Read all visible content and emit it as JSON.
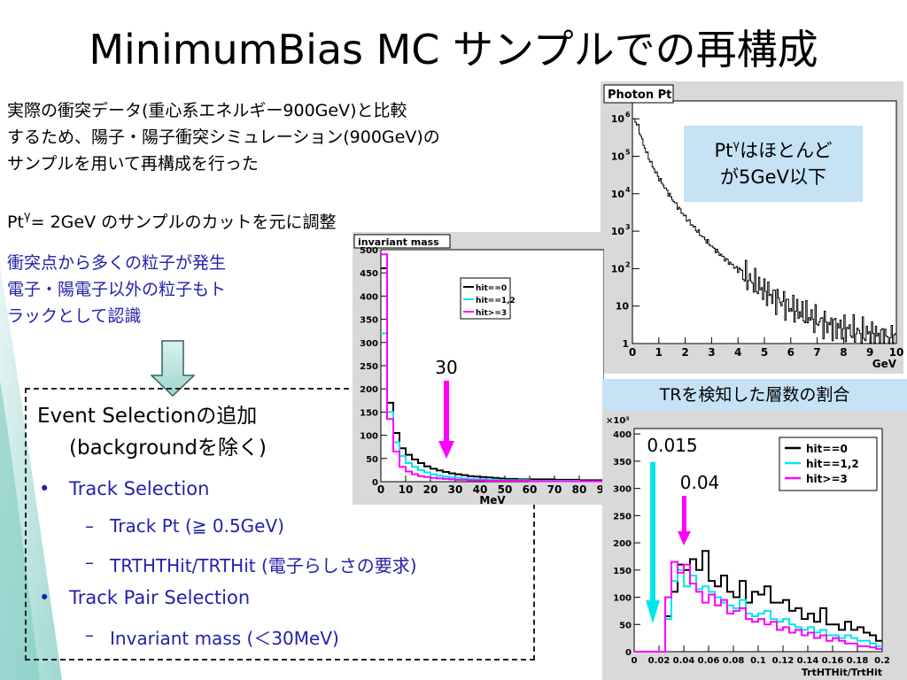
{
  "title": "MinimumBias MC サンプルでの再構成",
  "intro": {
    "line1": "実際の衝突データ(重心系エネルギー900GeV)と比較",
    "line2": "するため、陽子・陽子衝突シミュレーション(900GeV)の",
    "line3": "サンプルを用いて再構成を行った"
  },
  "pt_cut": {
    "prefix": "Pt",
    "sup": "γ",
    "rest": "= 2GeV のサンプルのカットを元に調整"
  },
  "blue_text": {
    "line1": "衝突点から多くの粒子が発生",
    "line2": "電子・陽電子以外の粒子もト",
    "line3": "ラックとして認識"
  },
  "selection": {
    "heading1": "Event Selectionの追加",
    "heading2": "(backgroundを除く)",
    "items": [
      {
        "bullet": "•",
        "text": "Track Selection"
      },
      {
        "bullet": "–",
        "text": "Track Pt (≧ 0.5GeV)"
      },
      {
        "bullet": "–",
        "text": "TRTHTHit/TRTHit  (電子らしさの要求)"
      },
      {
        "bullet": "•",
        "text": "Track Pair Selection"
      },
      {
        "bullet": "–",
        "text": "Invariant mass (＜30MeV)"
      }
    ]
  },
  "notes": {
    "photon_note_prefix": "Pt",
    "photon_note_sup": "γ",
    "photon_note_line1": "はほとんど",
    "photon_note_line2": "が5GeV以下",
    "trt_header": "TRを検知した層数の割合"
  },
  "colors": {
    "cyan": "#00e5ee",
    "magenta": "#ff00ff",
    "blue_text": "#2222aa",
    "note_bg": "#c6e2f5"
  },
  "chart_data": [
    {
      "type": "line",
      "title": "Photon Pt",
      "xlabel": "GeV",
      "ylabel": "",
      "log_y": true,
      "xlim": [
        0,
        10
      ],
      "ylim": [
        1,
        3000000
      ],
      "x_ticks": [
        "0",
        "1",
        "2",
        "3",
        "4",
        "5",
        "6",
        "7",
        "8",
        "9",
        "10"
      ],
      "y_ticks": [
        {
          "base": "1",
          "exp": ""
        },
        {
          "base": "10",
          "exp": ""
        },
        {
          "base": "10",
          "exp": "2"
        },
        {
          "base": "10",
          "exp": "3"
        },
        {
          "base": "10",
          "exp": "4"
        },
        {
          "base": "10",
          "exp": "5"
        },
        {
          "base": "10",
          "exp": "6"
        }
      ],
      "series": [
        {
          "x": [
            0.05,
            0.2,
            0.4,
            0.6,
            0.8,
            1.0,
            1.25,
            1.5,
            1.75,
            2.0,
            2.5,
            3.0,
            3.5,
            4.0,
            4.5,
            5.0,
            5.5,
            6.0,
            6.5,
            7.0,
            7.5,
            8.0,
            8.5,
            9.0,
            9.5,
            10.0
          ],
          "y": [
            1000000,
            600000,
            200000,
            90000,
            45000,
            25000,
            13000,
            7000,
            4000,
            2300,
            900,
            380,
            180,
            90,
            45,
            25,
            15,
            9,
            6,
            4,
            3,
            2.5,
            2,
            1.8,
            1.5,
            1.3
          ]
        }
      ]
    },
    {
      "type": "line",
      "title": "invariant mass",
      "xlabel": "MeV",
      "ylabel": "",
      "xlim": [
        0,
        90
      ],
      "ylim": [
        0,
        500
      ],
      "x_ticks": [
        "0",
        "10",
        "20",
        "30",
        "40",
        "50",
        "60",
        "70",
        "80",
        "90"
      ],
      "y_ticks": [
        "0",
        "50",
        "100",
        "150",
        "200",
        "250",
        "300",
        "350",
        "400",
        "450",
        "500"
      ],
      "annotations": [
        {
          "text": "30",
          "x": 30
        }
      ],
      "series": [
        {
          "name": "hit==0",
          "color": "#000000",
          "x": [
            0,
            2.5,
            5,
            7.5,
            10,
            12.5,
            15,
            17.5,
            20,
            22.5,
            25,
            27.5,
            30,
            32.5,
            35,
            37.5,
            40,
            42.5,
            45,
            47.5,
            50,
            55,
            60,
            70,
            80,
            90
          ],
          "y": [
            460,
            170,
            105,
            72,
            58,
            48,
            40,
            33,
            28,
            24,
            21,
            18,
            16,
            14,
            12,
            11,
            10,
            9,
            8,
            7,
            6,
            5,
            5,
            4,
            3,
            3
          ]
        },
        {
          "name": "hit==1,2",
          "color": "#00e5ee",
          "x": [
            0,
            2.5,
            5,
            7.5,
            10,
            12.5,
            15,
            17.5,
            20,
            22.5,
            25,
            27.5,
            30,
            32.5,
            35,
            37.5,
            40,
            42.5,
            45,
            47.5,
            50,
            55,
            60,
            70,
            80,
            90
          ],
          "y": [
            320,
            150,
            85,
            55,
            40,
            32,
            25,
            20,
            16,
            13,
            11,
            9,
            8,
            7,
            6,
            5,
            5,
            4,
            4,
            3,
            3,
            3,
            2,
            2,
            1,
            1
          ]
        },
        {
          "name": "hit>=3",
          "color": "#ff00ff",
          "x": [
            0,
            2.5,
            5,
            7.5,
            10,
            12.5,
            15,
            17.5,
            20,
            22.5,
            25,
            27.5,
            30,
            32.5,
            35,
            37.5,
            40,
            42.5,
            45,
            47.5,
            50,
            55,
            60,
            70,
            80,
            90
          ],
          "y": [
            490,
            135,
            65,
            32,
            22,
            16,
            12,
            10,
            8,
            7,
            6,
            5,
            4,
            4,
            3,
            3,
            3,
            2,
            2,
            2,
            2,
            2,
            1,
            1,
            1,
            1
          ]
        }
      ]
    },
    {
      "type": "line",
      "title": "",
      "xlabel": "TrtHTHit/TrtHit",
      "ylabel": "",
      "y_multiplier": "×10³",
      "xlim": [
        0,
        0.2
      ],
      "ylim": [
        0,
        410
      ],
      "x_ticks": [
        "0",
        "0.02",
        "0.04",
        "0.06",
        "0.08",
        "0.1",
        "0.12",
        "0.14",
        "0.16",
        "0.18",
        "0.2"
      ],
      "y_ticks": [
        "0",
        "50",
        "100",
        "150",
        "200",
        "250",
        "300",
        "350",
        "400"
      ],
      "annotations": [
        {
          "text": "0.015",
          "x": 0.015
        },
        {
          "text": "0.04",
          "x": 0.04
        }
      ],
      "series": [
        {
          "name": "hit==0",
          "color": "#000000",
          "x": [
            0,
            0.005,
            0.01,
            0.015,
            0.02,
            0.025,
            0.03,
            0.035,
            0.04,
            0.045,
            0.05,
            0.055,
            0.06,
            0.065,
            0.07,
            0.075,
            0.08,
            0.085,
            0.09,
            0.095,
            0.1,
            0.105,
            0.11,
            0.115,
            0.12,
            0.125,
            0.13,
            0.135,
            0.14,
            0.145,
            0.15,
            0.155,
            0.16,
            0.165,
            0.17,
            0.175,
            0.18,
            0.185,
            0.19,
            0.195
          ],
          "y": [
            0,
            0,
            0,
            0,
            0,
            65,
            110,
            160,
            150,
            170,
            150,
            185,
            130,
            120,
            140,
            110,
            100,
            130,
            90,
            110,
            105,
            120,
            90,
            90,
            95,
            75,
            80,
            60,
            70,
            55,
            80,
            50,
            50,
            40,
            55,
            40,
            45,
            35,
            30,
            20
          ]
        },
        {
          "name": "hit==1,2",
          "color": "#00e5ee",
          "x": [
            0,
            0.005,
            0.01,
            0.015,
            0.02,
            0.025,
            0.03,
            0.035,
            0.04,
            0.045,
            0.05,
            0.055,
            0.06,
            0.065,
            0.07,
            0.075,
            0.08,
            0.085,
            0.09,
            0.095,
            0.1,
            0.105,
            0.11,
            0.115,
            0.12,
            0.125,
            0.13,
            0.135,
            0.14,
            0.145,
            0.15,
            0.155,
            0.16,
            0.165,
            0.17,
            0.175,
            0.18,
            0.185,
            0.19,
            0.195
          ],
          "y": [
            0,
            0,
            0,
            0,
            0,
            60,
            130,
            150,
            120,
            140,
            115,
            120,
            110,
            100,
            90,
            85,
            80,
            95,
            70,
            65,
            70,
            75,
            60,
            55,
            60,
            50,
            45,
            40,
            45,
            35,
            40,
            30,
            30,
            25,
            30,
            25,
            20,
            20,
            15,
            10
          ]
        },
        {
          "name": "hit>=3",
          "color": "#ff00ff",
          "x": [
            0,
            0.005,
            0.01,
            0.015,
            0.02,
            0.025,
            0.03,
            0.035,
            0.04,
            0.045,
            0.05,
            0.055,
            0.06,
            0.065,
            0.07,
            0.075,
            0.08,
            0.085,
            0.09,
            0.095,
            0.1,
            0.105,
            0.11,
            0.115,
            0.12,
            0.125,
            0.13,
            0.135,
            0.14,
            0.145,
            0.15,
            0.155,
            0.16,
            0.165,
            0.17,
            0.175,
            0.18,
            0.185,
            0.19,
            0.195
          ],
          "y": [
            0,
            0,
            0,
            0,
            0,
            100,
            165,
            145,
            160,
            125,
            110,
            90,
            105,
            85,
            95,
            70,
            75,
            80,
            60,
            55,
            60,
            50,
            55,
            40,
            45,
            35,
            40,
            30,
            35,
            25,
            30,
            20,
            25,
            20,
            15,
            15,
            10,
            10,
            8,
            5
          ]
        }
      ]
    }
  ]
}
